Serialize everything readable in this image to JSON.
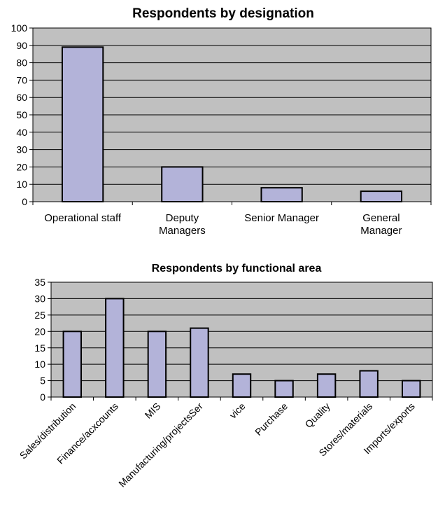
{
  "chart_data": [
    {
      "type": "bar",
      "title": "Respondents by designation",
      "xlabel": "",
      "ylabel": "",
      "ylim": [
        0,
        100
      ],
      "yticks": [
        0,
        10,
        20,
        30,
        40,
        50,
        60,
        70,
        80,
        90,
        100
      ],
      "grid": true,
      "categories": [
        [
          "Operational staff"
        ],
        [
          "Deputy",
          "Managers"
        ],
        [
          "Senior Manager"
        ],
        [
          "General",
          "Manager"
        ]
      ],
      "values": [
        89,
        20,
        8,
        6
      ],
      "colors": {
        "bar": "#b3b3d9",
        "plot_bg": "#c0c0c0",
        "border": "#000000",
        "grid": "#000000"
      }
    },
    {
      "type": "bar",
      "title": "Respondents by functional area",
      "xlabel": "",
      "ylabel": "",
      "ylim": [
        0,
        35
      ],
      "yticks": [
        0,
        5,
        10,
        15,
        20,
        25,
        30,
        35
      ],
      "grid": true,
      "categories": [
        "Sales/distribution",
        "Finance/acxcounts",
        "MIS",
        "Manufacturing/projectsSer",
        "vice",
        "Purchase",
        "Quality",
        "Stores/materials",
        "Imports/exports"
      ],
      "values": [
        20,
        30,
        20,
        21,
        7,
        5,
        7,
        8,
        5
      ],
      "colors": {
        "bar": "#b3b3d9",
        "plot_bg": "#c0c0c0",
        "border": "#000000",
        "grid": "#000000"
      }
    }
  ]
}
